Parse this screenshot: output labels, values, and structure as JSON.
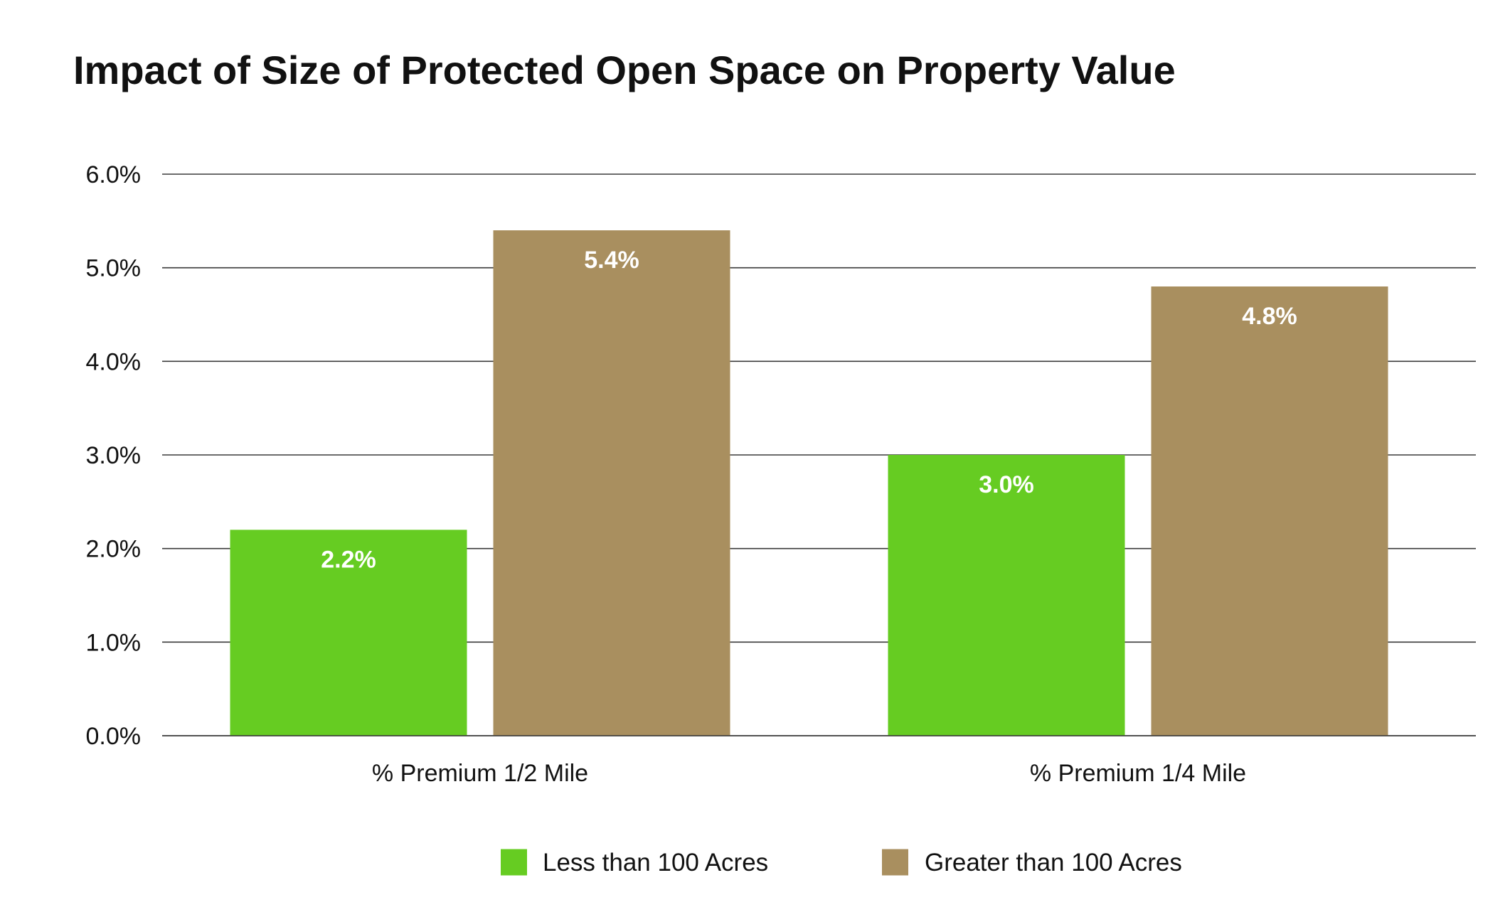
{
  "chart_data": {
    "type": "bar",
    "title": "Impact of Size of Protected Open Space on Property Value",
    "xlabel": "",
    "ylabel": "",
    "categories": [
      "% Premium 1/2 Mile",
      "% Premium 1/4 Mile"
    ],
    "series": [
      {
        "name": "Less than 100 Acres",
        "color": "#66cc22",
        "values": [
          2.2,
          3.0
        ],
        "labels": [
          "2.2%",
          "3.0%"
        ]
      },
      {
        "name": "Greater than 100 Acres",
        "color": "#a98f5f",
        "values": [
          5.4,
          4.8
        ],
        "labels": [
          "5.4%",
          "4.8%"
        ]
      }
    ],
    "ylim": [
      0,
      6
    ],
    "yticks": [
      0,
      1,
      2,
      3,
      4,
      5,
      6
    ],
    "ytick_labels": [
      "0.0%",
      "1.0%",
      "2.0%",
      "3.0%",
      "4.0%",
      "5.0%",
      "6.0%"
    ],
    "grid": true,
    "legend_position": "bottom-center",
    "data_labels": "inside-top"
  }
}
